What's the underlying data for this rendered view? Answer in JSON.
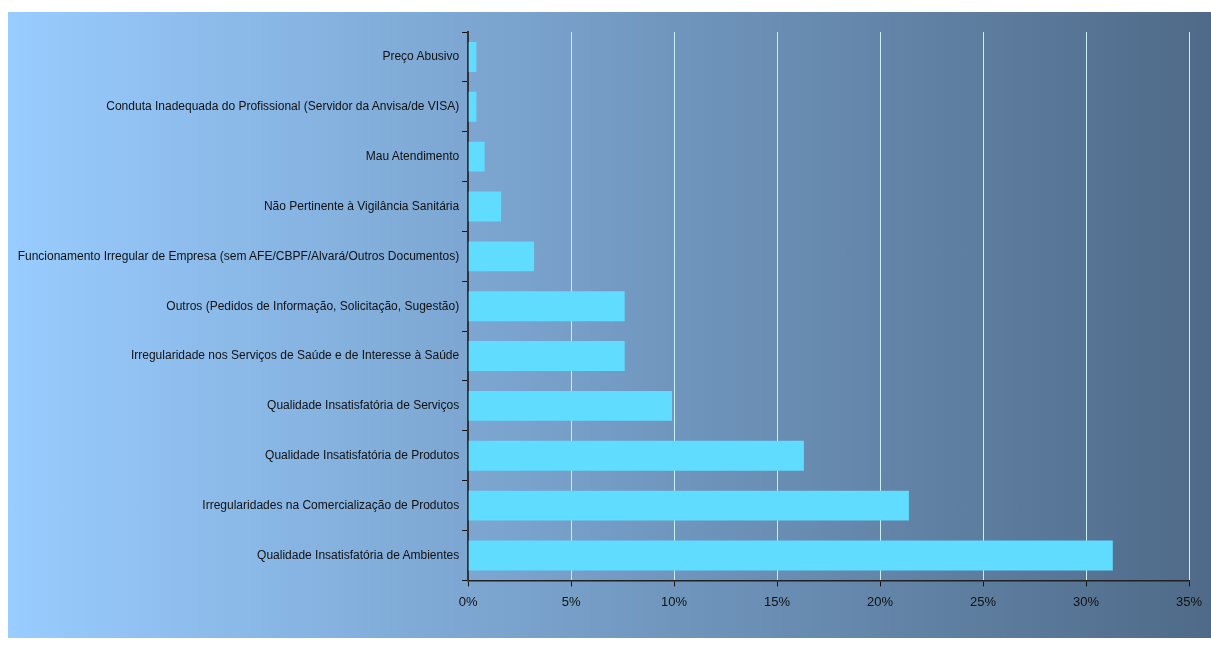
{
  "chart_data": {
    "type": "bar",
    "orientation": "horizontal",
    "categories": [
      "Preço Abusivo",
      "Conduta Inadequada do Profissional (Servidor da Anvisa/de VISA)",
      "Mau Atendimento",
      "Não Pertinente à Vigilância Sanitária",
      "Funcionamento Irregular de Empresa (sem AFE/CBPF/Alvará/Outros Documentos)",
      "Outros (Pedidos de Informação, Solicitação, Sugestão)",
      "Irregularidade nos Serviços de Saúde e de Interesse à Saúde",
      "Qualidade Insatisfatória de Serviços",
      "Qualidade Insatisfatória de Produtos",
      "Irregularidades na Comercialização de Produtos",
      "Qualidade Insatisfatória de Ambientes"
    ],
    "values": [
      0.4,
      0.4,
      0.8,
      1.6,
      3.2,
      7.6,
      7.6,
      9.9,
      16.3,
      21.4,
      31.3
    ],
    "color": "#5fdcff",
    "xlim": [
      0,
      35
    ],
    "xticks": [
      {
        "value": 0,
        "label": "0%"
      },
      {
        "value": 5,
        "label": "5%"
      },
      {
        "value": 10,
        "label": "10%"
      },
      {
        "value": 15,
        "label": "15%"
      },
      {
        "value": 20,
        "label": "20%"
      },
      {
        "value": 25,
        "label": "25%"
      },
      {
        "value": 30,
        "label": "30%"
      },
      {
        "value": 35,
        "label": "35%"
      }
    ],
    "grid": "x",
    "legend": false
  }
}
